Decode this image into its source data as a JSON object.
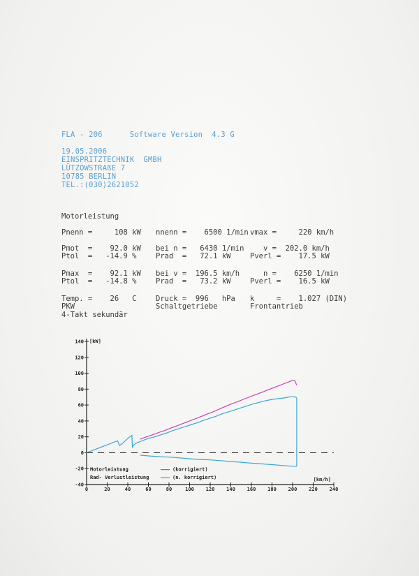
{
  "header": {
    "device": "FLA - 206",
    "software": "Software Version  4.3 G",
    "date": "19.05.2006",
    "company": "EINSPRITZTECHNIK  GMBH",
    "street": "LÜTZOWSTRAßE 7",
    "city": "10785 BERLIN",
    "tel": "TEL.:(030)2621052"
  },
  "section_title": "Motorleistung",
  "rows": {
    "r1": {
      "a": "Pnenn =     108 kW",
      "b": "nnenn =    6500 1/min",
      "c": "vmax =     220 km/h"
    },
    "r2": {
      "a": "Pmot  =    92.0 kW",
      "b": "bei n =   6430 1/min",
      "c": "   v =  202.0 km/h"
    },
    "r3": {
      "a": "Ptol  =   -14.9 %",
      "b": "Prad  =   72.1 kW",
      "c": "Pverl =    17.5 kW"
    },
    "r4": {
      "a": "Pmax  =    92.1 kW",
      "b": "bei v =  196.5 km/h",
      "c": "   n =    6250 1/min"
    },
    "r5": {
      "a": "Ptol  =   -14.8 %",
      "b": "Prad  =   73.2 kW",
      "c": "Pverl =    16.5 kW"
    },
    "r6": {
      "a": "Temp. =    26   C",
      "b": "Druck =  996   hPa",
      "c": "k     =    1.027 (DIN)"
    },
    "r7": {
      "a": "PKW",
      "b": "Schaltgetriebe",
      "c": "Frontantrieb"
    },
    "r8": {
      "a": "4-Takt sekundär"
    }
  },
  "chart_data": {
    "type": "line",
    "ylabel": "[kW]",
    "xlabel": "[km/h]",
    "ylim": [
      -40,
      140
    ],
    "xlim": [
      0,
      240
    ],
    "y_ticks": [
      -40,
      -20,
      0,
      20,
      40,
      60,
      80,
      100,
      120,
      140
    ],
    "x_ticks": [
      0,
      20,
      40,
      60,
      80,
      100,
      120,
      140,
      160,
      180,
      200,
      220,
      240
    ],
    "legend": {
      "motor": "Motorleistung",
      "rad": "Rad- Verlustleistung",
      "korr": "(korrigiert)",
      "nkorr": "(n. korrigiert)"
    },
    "colors": {
      "motor": "#cc3fae",
      "rad": "#3aa6d6",
      "axis": "#222222",
      "zero": "#222222"
    },
    "series": [
      {
        "id": "motor",
        "x": [
          52,
          58,
          64,
          70,
          76,
          82,
          88,
          94,
          100,
          106,
          112,
          118,
          124,
          130,
          136,
          142,
          148,
          154,
          160,
          166,
          172,
          178,
          184,
          190,
          196,
          200,
          202,
          204
        ],
        "y": [
          17,
          20,
          22.5,
          25.5,
          28,
          31,
          34,
          37,
          40,
          43,
          46,
          49,
          52,
          55.5,
          59,
          62,
          65,
          68,
          71,
          74,
          77,
          80,
          83,
          86,
          89,
          91,
          91,
          85
        ]
      },
      {
        "id": "rad",
        "x": [
          0,
          4,
          8,
          12,
          16,
          20,
          24,
          28,
          30,
          32,
          34,
          36,
          40,
          44,
          44.5,
          46,
          48,
          50,
          52,
          56,
          60,
          66,
          72,
          78,
          84,
          90,
          96,
          102,
          108,
          114,
          120,
          126,
          132,
          138,
          144,
          150,
          156,
          162,
          168,
          174,
          180,
          186,
          192,
          198,
          202,
          204
        ],
        "y": [
          0,
          2,
          4,
          6,
          8,
          10,
          12,
          14,
          15,
          9,
          11,
          13,
          18,
          22,
          7,
          10,
          12,
          13,
          14,
          16,
          18,
          20,
          22.5,
          25,
          28,
          30.5,
          33,
          35.5,
          38,
          41,
          43.5,
          46,
          49,
          51.5,
          54,
          56.5,
          59,
          61.5,
          63.5,
          65.5,
          67,
          68,
          69,
          70.5,
          70.5,
          69
        ]
      },
      {
        "id": "verlust",
        "x": [
          52,
          60,
          70,
          80,
          90,
          100,
          110,
          120,
          130,
          140,
          150,
          160,
          170,
          180,
          190,
          200,
          204
        ],
        "y": [
          -3,
          -4,
          -5,
          -5.5,
          -6.5,
          -7.5,
          -8.5,
          -9,
          -10,
          -11,
          -12,
          -13,
          -14,
          -15,
          -16,
          -17,
          -17
        ]
      }
    ]
  }
}
